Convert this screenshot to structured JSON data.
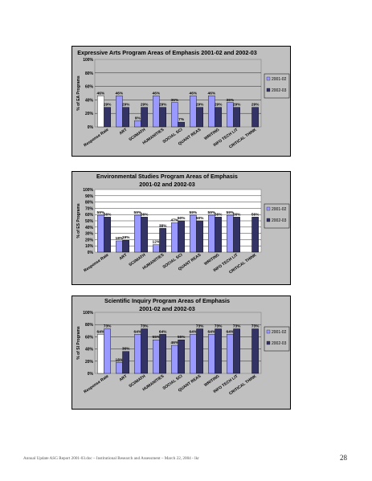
{
  "chart_data": [
    {
      "type": "bar",
      "title_lines": [
        "Expressive Arts Program Areas of Emphasis 2001-02 and 2002-03"
      ],
      "ylabel": "% of EA Programs",
      "categories": [
        "Response Rate",
        "ART",
        "SCI/MATH",
        "HUMANITIES",
        "SOCIAL SCI",
        "QUANT REAS",
        "WRITING",
        "INFO TECH LIT",
        "CRITICAL THINK"
      ],
      "ylim": [
        0,
        100
      ],
      "yticks": [
        "0%",
        "20%",
        "40%",
        "60%",
        "80%",
        "100%"
      ],
      "series": [
        {
          "name": "2001-02",
          "values": [
            46,
            46,
            9,
            46,
            36,
            46,
            46,
            36,
            null
          ],
          "labels": [
            "46%",
            "46%",
            "9%",
            "46%",
            "36%",
            "46%",
            "46%",
            "36%",
            ""
          ]
        },
        {
          "name": "2002-03",
          "values": [
            29,
            29,
            29,
            29,
            7,
            29,
            29,
            29,
            29
          ],
          "labels": [
            "29%",
            "29%",
            "29%",
            "29%",
            "7%",
            "29%",
            "29%",
            "29%",
            "29%"
          ]
        }
      ],
      "legend_position": "right",
      "colors": {
        "s1": "#9999ff",
        "s2": "#333366",
        "plot_bg": "#c0c0c0",
        "first_bar": "#ffffff"
      }
    },
    {
      "type": "bar",
      "title_lines": [
        "Environmental Studies Program Areas of Emphasis",
        "2001-02 and 2002-03"
      ],
      "ylabel": "% of ES Programs",
      "categories": [
        "Response Rate",
        "ART",
        "SCI/MATH",
        "HUMANITIES",
        "SOCIAL SCI",
        "QUANT REAS",
        "WRITING",
        "INFO TECH LIT",
        "CRITICAL THINK"
      ],
      "ylim": [
        0,
        100
      ],
      "yticks": [
        "0%",
        "10%",
        "20%",
        "30%",
        "40%",
        "50%",
        "60%",
        "70%",
        "80%",
        "90%",
        "100%"
      ],
      "series": [
        {
          "name": "2001-02",
          "values": [
            59,
            18,
            59,
            12,
            47,
            59,
            59,
            59,
            null
          ],
          "labels": [
            "59%",
            "18%",
            "59%",
            "12%",
            "47%",
            "59%",
            "59%",
            "59%",
            ""
          ]
        },
        {
          "name": "2002-03",
          "values": [
            56,
            19,
            56,
            38,
            50,
            50,
            56,
            56,
            56
          ],
          "labels": [
            "56%",
            "19%",
            "56%",
            "38%",
            "50%",
            "50%",
            "56%",
            "56%",
            "56%"
          ]
        }
      ],
      "legend_position": "right",
      "colors": {
        "s1": "#9999ff",
        "s2": "#333366",
        "plot_bg": "#ffffff",
        "first_bar": "#9999ff"
      }
    },
    {
      "type": "bar",
      "title_lines": [
        "Scientific Inquiry Program Areas of Emphasis",
        "2001-02 and 2002-03"
      ],
      "ylabel": "% of SI Programs",
      "categories": [
        "Response Rate",
        "ART",
        "SCI/MATH",
        "HUMANITIES",
        "SOCIAL SCI",
        "QUANT REAS",
        "WRITING",
        "INFO TECH LIT",
        "CRITICAL THINK"
      ],
      "ylim": [
        0,
        100
      ],
      "yticks": [
        "0%",
        "20%",
        "40%",
        "60%",
        "80%",
        "100%"
      ],
      "series": [
        {
          "name": "2001-02",
          "values": [
            64,
            18,
            64,
            55,
            46,
            64,
            64,
            64,
            null
          ],
          "labels": [
            "64%",
            "18%",
            "64%",
            "55%",
            "46%",
            "64%",
            "64%",
            "64%",
            ""
          ]
        },
        {
          "name": "2002-03",
          "values": [
            73,
            36,
            73,
            64,
            55,
            73,
            73,
            73,
            73
          ],
          "labels": [
            "73%",
            "36%",
            "73%",
            "64%",
            "55%",
            "73%",
            "73%",
            "73%",
            "73%"
          ]
        }
      ],
      "legend_position": "right",
      "colors": {
        "s1": "#9999ff",
        "s2": "#333366",
        "plot_bg": "#c0c0c0",
        "first_bar": "#ffffff",
        "first_bar_s2": "#9999ff"
      }
    }
  ],
  "footer": {
    "text": "Annual Update ASG Report 2001-03.doc – Institutional Research and Assessment – March 22, 2004 - lkr",
    "page_number": "28"
  }
}
